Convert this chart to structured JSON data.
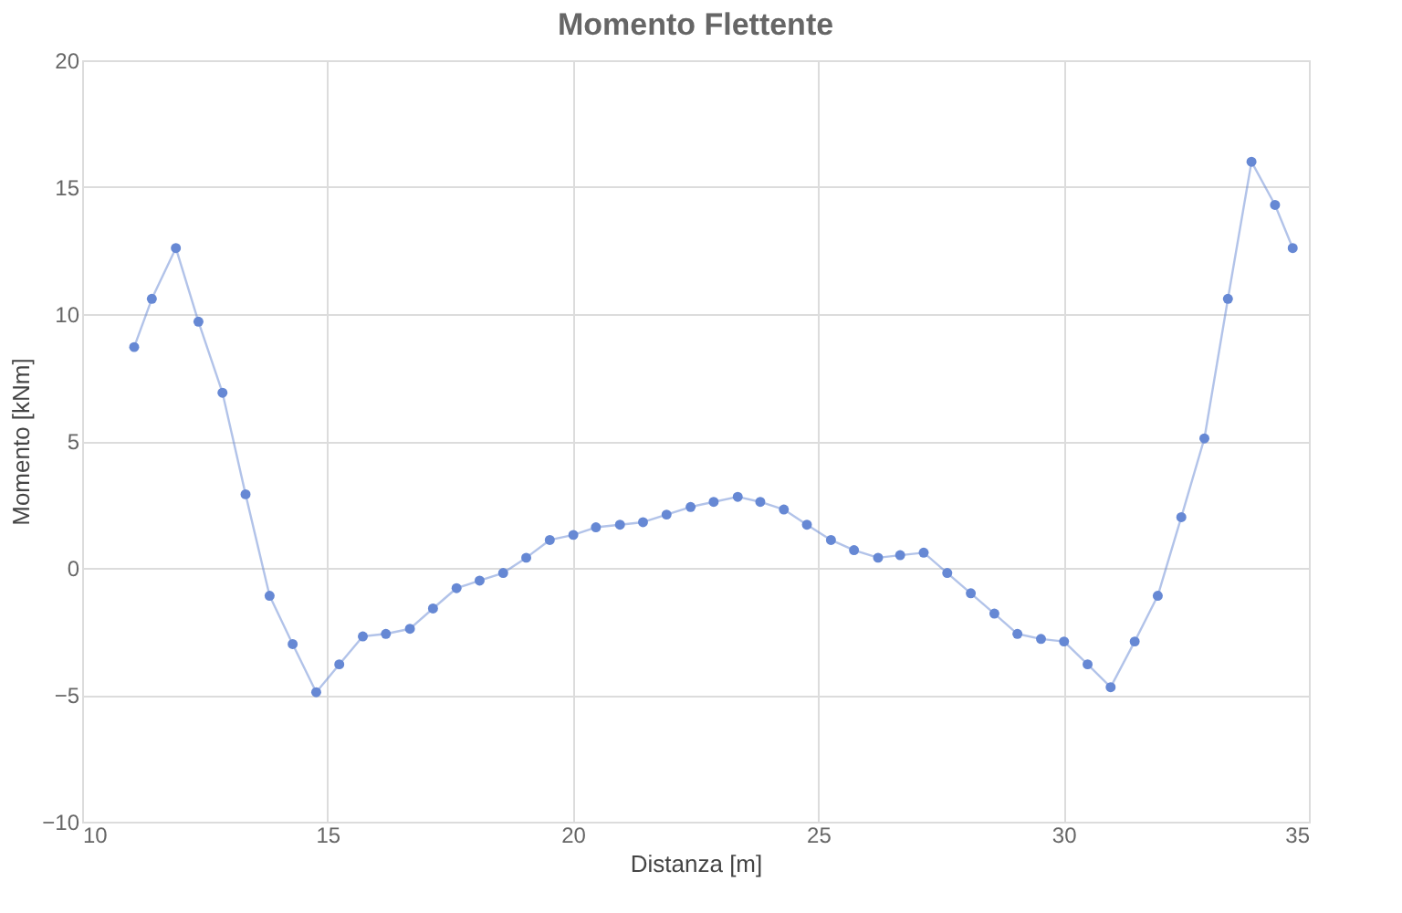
{
  "chart_data": {
    "type": "line",
    "title": "Momento Flettente",
    "xlabel": "Distanza [m]",
    "ylabel": "Momento [kNm]",
    "x": [
      11.06,
      11.42,
      11.91,
      12.37,
      12.86,
      13.33,
      13.82,
      14.29,
      14.77,
      15.24,
      15.72,
      16.19,
      16.68,
      17.15,
      17.63,
      18.1,
      18.58,
      19.05,
      19.53,
      20.01,
      20.47,
      20.96,
      21.43,
      21.91,
      22.4,
      22.87,
      23.36,
      23.82,
      24.3,
      24.77,
      25.26,
      25.73,
      26.22,
      26.67,
      27.15,
      27.63,
      28.11,
      28.59,
      29.06,
      29.54,
      30.01,
      30.49,
      30.96,
      31.45,
      31.92,
      32.4,
      32.87,
      33.35,
      33.83,
      34.31,
      34.67
    ],
    "series": [
      {
        "color": "#6688d4",
        "values": [
          8.7,
          10.6,
          12.6,
          9.7,
          6.9,
          2.9,
          -1.1,
          -3.0,
          -4.9,
          -3.8,
          -2.7,
          -2.6,
          -2.4,
          -1.6,
          -0.8,
          -0.5,
          -0.2,
          0.4,
          1.1,
          1.3,
          1.6,
          1.7,
          1.8,
          2.1,
          2.4,
          2.6,
          2.8,
          2.6,
          2.3,
          1.7,
          1.1,
          0.7,
          0.4,
          0.5,
          0.6,
          -0.2,
          -1.0,
          -1.8,
          -2.6,
          -2.8,
          -2.9,
          -3.8,
          -4.7,
          -2.9,
          -1.1,
          2.0,
          5.1,
          10.6,
          16.0,
          14.3,
          12.6
        ]
      }
    ],
    "xlim": [
      10,
      35
    ],
    "xticks": [
      10,
      15,
      20,
      25,
      30,
      35
    ],
    "ylim": [
      -10,
      20
    ],
    "yticks": [
      -10,
      -5,
      0,
      5,
      10,
      15,
      20
    ],
    "grid": true,
    "marker": "circle",
    "line_style": "solid"
  }
}
